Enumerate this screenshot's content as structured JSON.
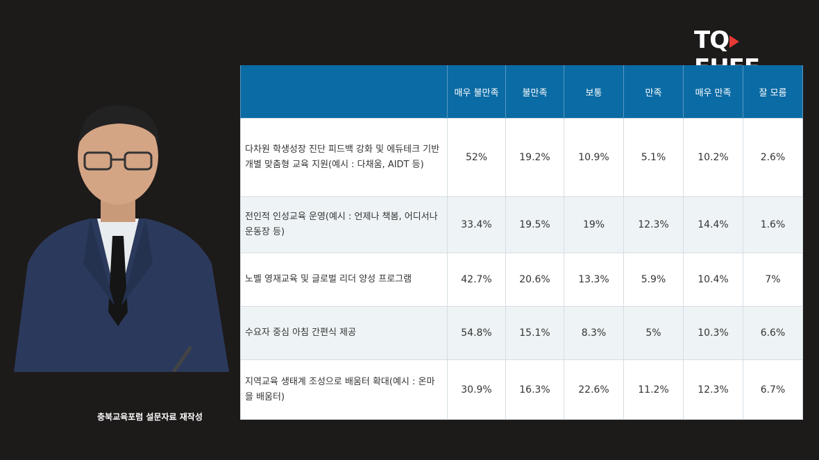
{
  "brand": {
    "logo_left": "TQ",
    "logo_right": "EHEE"
  },
  "caption": "충북교육포럼 설문자료 재작성",
  "table": {
    "headers": [
      "",
      "매우 불만족",
      "불만족",
      "보통",
      "만족",
      "매우 만족",
      "잘 모름"
    ],
    "rows": [
      {
        "item": "다차원 학생성장 진단 피드백 강화 및 에듀테크 기반 개별 맞춤형 교육 지원(예시 : 다채움, AIDT 등)",
        "values": [
          "52%",
          "19.2%",
          "10.9%",
          "5.1%",
          "10.2%",
          "2.6%"
        ]
      },
      {
        "item": "전인적 인성교육 운영(예시 : 언제나 책봄, 어디서나 운동장 등)",
        "values": [
          "33.4%",
          "19.5%",
          "19%",
          "12.3%",
          "14.4%",
          "1.6%"
        ]
      },
      {
        "item": "노벨 영재교육 및 글로벌 리더 양성 프로그램",
        "values": [
          "42.7%",
          "20.6%",
          "13.3%",
          "5.9%",
          "10.4%",
          "7%"
        ]
      },
      {
        "item": "수요자 중심 아침 간편식 제공",
        "values": [
          "54.8%",
          "15.1%",
          "8.3%",
          "5%",
          "10.3%",
          "6.6%"
        ]
      },
      {
        "item": "지역교육 생태계 조성으로 배움터 확대(예시 : 온마을 배움터)",
        "values": [
          "30.9%",
          "16.3%",
          "22.6%",
          "11.2%",
          "12.3%",
          "6.7%"
        ]
      }
    ]
  },
  "colors": {
    "header_bg": "#0b6ba4",
    "row_alt_bg": "#eef4f6",
    "logo_accent": "#e53935"
  }
}
